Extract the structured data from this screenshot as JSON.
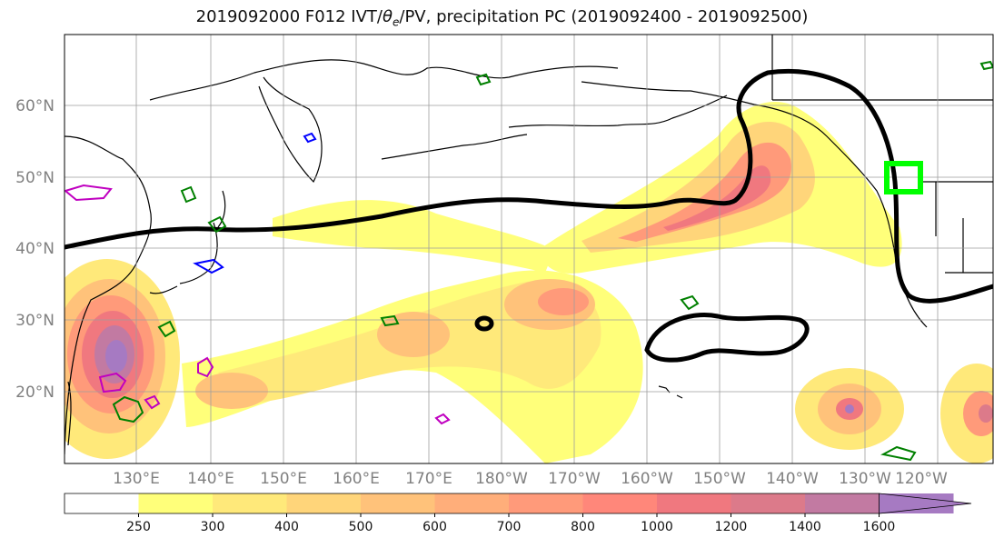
{
  "title_main": "2019092000 F012 IVT/",
  "title_theta": "θ",
  "title_theta_sub": "e",
  "title_rest": "/PV, precipitation PC (2019092400 - 2019092500)",
  "lat_labels": [
    "60°N",
    "50°N",
    "40°N",
    "30°N",
    "20°N"
  ],
  "lon_labels": [
    "130°E",
    "140°E",
    "150°E",
    "160°E",
    "170°E",
    "180°W",
    "170°W",
    "160°W",
    "150°W",
    "140°W",
    "130°W",
    "120°W"
  ],
  "colorbar": {
    "ticks": [
      "250",
      "300",
      "400",
      "500",
      "600",
      "700",
      "800",
      "1000",
      "1200",
      "1400",
      "1600"
    ],
    "colors": [
      "#ffffff",
      "#ffff7a",
      "#ffe97a",
      "#ffd57a",
      "#ffc27a",
      "#ffae7a",
      "#ff9a7a",
      "#ff877a",
      "#f0787f",
      "#dc7a8a",
      "#c27aa2",
      "#a67ac2"
    ]
  },
  "colors": {
    "pv_contour": "#000000",
    "highlight_box": "#00ff00",
    "precip_green": "#008000",
    "precip_blue": "#0000ff",
    "precip_magenta": "#c000c0"
  }
}
